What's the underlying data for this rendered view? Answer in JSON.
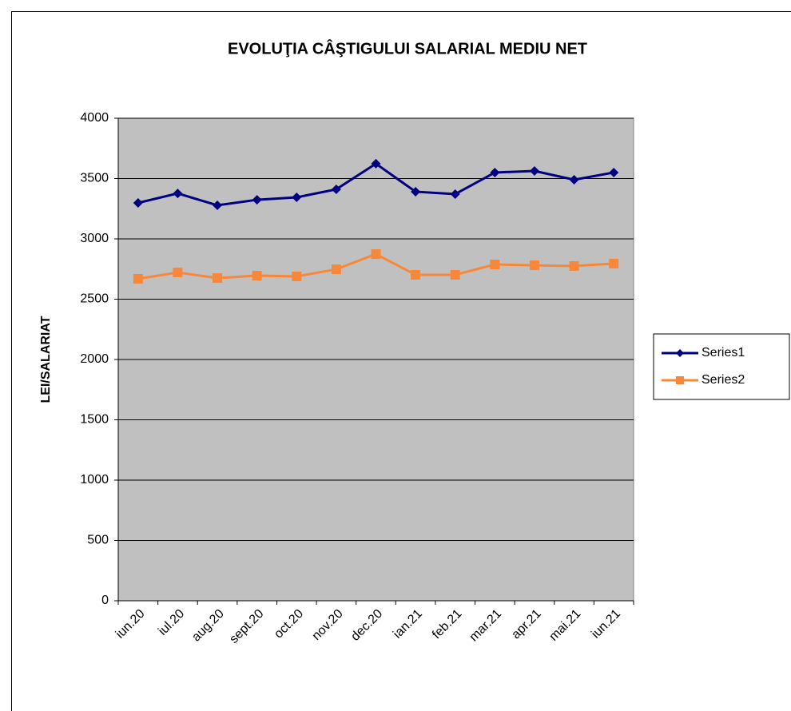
{
  "chart_data": {
    "type": "line",
    "title": "EVOLUŢIA CÂŞTIGULUI SALARIAL  MEDIU NET",
    "ylabel": "LEI/SALARIAT",
    "categories": [
      "iun.20",
      "iul.20",
      "aug.20",
      "sept.20",
      "oct.20",
      "nov.20",
      "dec.20",
      "ian.21",
      "feb.21",
      "mar.21",
      "apr.21",
      "mai.21",
      "iun.21"
    ],
    "series": [
      {
        "name": "Series1",
        "color": "#000080",
        "marker": "diamond",
        "values": [
          3298,
          3377,
          3278,
          3324,
          3344,
          3411,
          3623,
          3391,
          3371,
          3550,
          3563,
          3490,
          3550
        ]
      },
      {
        "name": "Series2",
        "color": "#f7883a",
        "marker": "square",
        "values": [
          2669,
          2722,
          2675,
          2695,
          2689,
          2748,
          2874,
          2702,
          2702,
          2788,
          2781,
          2775,
          2795
        ]
      }
    ],
    "ylim": [
      0,
      4000
    ],
    "yticks": [
      0,
      500,
      1000,
      1500,
      2000,
      2500,
      3000,
      3500,
      4000
    ],
    "grid": true,
    "legend": "right"
  }
}
